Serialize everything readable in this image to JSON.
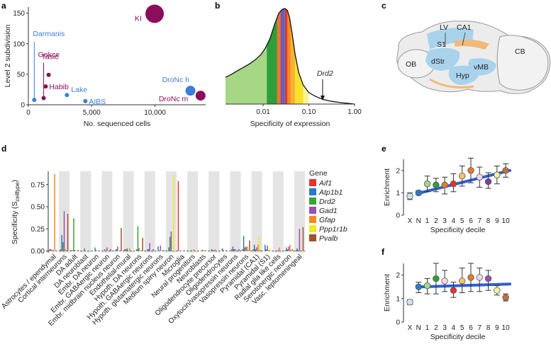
{
  "panels": {
    "a": {
      "label": "a"
    },
    "b": {
      "label": "b"
    },
    "c": {
      "label": "c"
    },
    "d": {
      "label": "d"
    },
    "e": {
      "label": "e"
    },
    "f": {
      "label": "f"
    }
  },
  "brain": {
    "regions": [
      "LV",
      "CA1",
      "S1",
      "OB",
      "dStr",
      "Hyp",
      "vMB",
      "CB"
    ]
  },
  "colors": {
    "blue": "#3b7fd6",
    "purple": "#8b0e5a",
    "Aif1": "#e8322a",
    "Atp1b1": "#2b79c9",
    "Drd2": "#3aa335",
    "Gad1": "#9b4fb3",
    "Gfap": "#f5881f",
    "Ppp1r1b": "#f2e826",
    "Pvalb": "#a0522d",
    "trend": "#2f5fd1"
  },
  "chart_data": [
    {
      "panel": "a",
      "type": "scatter",
      "xlabel": "No. sequenced cells",
      "ylabel": "Level 2 subdivision",
      "xlim": [
        0,
        14000
      ],
      "ylim": [
        0,
        160
      ],
      "xticks": [
        "0",
        "5,000",
        "10,000"
      ],
      "yticks": [
        "0",
        "50",
        "100",
        "150"
      ],
      "points": [
        {
          "name": "KI",
          "x": 9970,
          "y": 149,
          "size": 13,
          "group": "purple"
        },
        {
          "name": "Darmanis",
          "x": 466,
          "y": 8,
          "size": 3,
          "group": "blue"
        },
        {
          "name": "Gokce",
          "x": 1208,
          "y": 11,
          "size": 3,
          "group": "purple"
        },
        {
          "name": "Tasic",
          "x": 1600,
          "y": 49,
          "size": 3,
          "group": "purple"
        },
        {
          "name": "Habib",
          "x": 1367,
          "y": 30,
          "size": 3,
          "group": "purple"
        },
        {
          "name": "Lake",
          "x": 3042,
          "y": 16,
          "size": 3,
          "group": "blue"
        },
        {
          "name": "AIBS",
          "x": 4500,
          "y": 6,
          "size": 3,
          "group": "blue"
        },
        {
          "name": "DroNc h",
          "x": 12800,
          "y": 23,
          "size": 7,
          "group": "blue"
        },
        {
          "name": "DroNc m",
          "x": 13600,
          "y": 15,
          "size": 7,
          "group": "purple"
        }
      ]
    },
    {
      "panel": "b",
      "type": "area",
      "xlabel": "Specificity of expression",
      "xticks": [
        "0.01",
        "0.10",
        "1.00"
      ],
      "scale": "log",
      "xlim": [
        0.0015,
        1.0
      ],
      "annotation": "Drd2",
      "annotation_x": 0.2,
      "density_x": [
        0.0015,
        0.002,
        0.003,
        0.005,
        0.007,
        0.009,
        0.011,
        0.014,
        0.018,
        0.022,
        0.026,
        0.03,
        0.034,
        0.038,
        0.043,
        0.05,
        0.06,
        0.075,
        0.1,
        0.14,
        0.2,
        0.3,
        0.5,
        0.8,
        1.0
      ],
      "density_y": [
        0.28,
        0.31,
        0.36,
        0.42,
        0.47,
        0.52,
        0.58,
        0.68,
        0.84,
        0.95,
        0.99,
        1.0,
        0.98,
        0.9,
        0.74,
        0.52,
        0.33,
        0.2,
        0.12,
        0.08,
        0.05,
        0.03,
        0.015,
        0.005,
        0.0
      ],
      "bands": [
        {
          "from": 0.0015,
          "to": 0.012,
          "color": "#a6d785"
        },
        {
          "from": 0.012,
          "to": 0.02,
          "color": "#2e9e3a"
        },
        {
          "from": 0.02,
          "to": 0.024,
          "color": "#e07a2e"
        },
        {
          "from": 0.024,
          "to": 0.027,
          "color": "#9b3fb0"
        },
        {
          "from": 0.027,
          "to": 0.03,
          "color": "#2b79c9"
        },
        {
          "from": 0.03,
          "to": 0.034,
          "color": "#e8322a"
        },
        {
          "from": 0.034,
          "to": 0.04,
          "color": "#f5881f"
        },
        {
          "from": 0.04,
          "to": 0.05,
          "color": "#f7b234"
        },
        {
          "from": 0.05,
          "to": 0.075,
          "color": "#f6e22a"
        },
        {
          "from": 0.075,
          "to": 0.1,
          "color": "#f8f29a"
        }
      ]
    },
    {
      "panel": "d",
      "type": "bar",
      "ylabel": "Specificity (S",
      "ylabel_sub": "celltype",
      "ylabel_end": ")",
      "ylim": [
        -0.02,
        0.9
      ],
      "yticks": [
        "0.00",
        "0.25",
        "0.50",
        "0.75"
      ],
      "legend_title": "Gene",
      "legend_position": "right",
      "series_names": [
        "Aif1",
        "Atp1b1",
        "Drd2",
        "Gad1",
        "Gfap",
        "Ppp1r1b",
        "Pvalb"
      ],
      "categories": [
        "Astrocytes / ependymal",
        "Cortical interneurons",
        "DA adult",
        "DA neuroblast",
        "Embr. DA neuron",
        "Embr. GABAergic neuron",
        "Embr. midbrain nucleus neuron",
        "Endothelial-mural",
        "Hypoth. DA neurons",
        "Hypoth. GABAergic neurons",
        "Hypoth. glutamatergic neurons",
        "Medium spiny neuron",
        "Microglia",
        "Neural progenitors",
        "Neuroblasts",
        "Oligodendrocyte precursor",
        "Oligodendrocytes",
        "Oxytocin/vasopressin neurons",
        "Vasopressin neurons",
        "Pyramidal (CA1)",
        "Pyramidal (S1)",
        "Radial glia like cells",
        "Serotonergic neuron",
        "Vasc. leptomeningeal"
      ],
      "values": [
        [
          0.02,
          0.02,
          0.0,
          0.01,
          0.87,
          0.0,
          0.0
        ],
        [
          0.02,
          0.18,
          0.1,
          0.45,
          0.02,
          0.0,
          0.42
        ],
        [
          0.01,
          0.01,
          0.37,
          0.01,
          0.0,
          0.01,
          0.01
        ],
        [
          0.0,
          0.0,
          0.03,
          0.0,
          0.0,
          0.0,
          0.0
        ],
        [
          0.0,
          0.0,
          0.04,
          0.01,
          0.0,
          0.0,
          0.0
        ],
        [
          0.0,
          0.02,
          0.0,
          0.04,
          0.0,
          0.0,
          0.02
        ],
        [
          0.0,
          0.01,
          0.02,
          0.05,
          0.0,
          0.0,
          0.26
        ],
        [
          0.02,
          0.02,
          0.03,
          0.0,
          0.03,
          0.0,
          0.0
        ],
        [
          0.0,
          0.02,
          0.28,
          0.03,
          0.0,
          0.01,
          0.15
        ],
        [
          0.0,
          0.02,
          0.02,
          0.09,
          0.0,
          0.0,
          0.02
        ],
        [
          0.0,
          0.05,
          0.0,
          0.06,
          0.0,
          0.0,
          0.01
        ],
        [
          0.0,
          0.04,
          0.16,
          0.22,
          0.0,
          0.86,
          0.0
        ],
        [
          0.79,
          0.0,
          0.0,
          0.0,
          0.0,
          0.0,
          0.0
        ],
        [
          0.0,
          0.0,
          0.01,
          0.0,
          0.02,
          0.0,
          0.0
        ],
        [
          0.0,
          0.0,
          0.01,
          0.01,
          0.0,
          0.0,
          0.0
        ],
        [
          0.0,
          0.02,
          0.01,
          0.01,
          0.02,
          0.0,
          0.0
        ],
        [
          0.0,
          0.03,
          0.01,
          0.0,
          0.01,
          0.0,
          0.0
        ],
        [
          0.02,
          0.05,
          0.02,
          0.02,
          0.0,
          0.0,
          0.02
        ],
        [
          0.02,
          0.17,
          0.04,
          0.05,
          0.05,
          0.02,
          0.12
        ],
        [
          0.02,
          0.07,
          0.02,
          0.04,
          0.07,
          0.16,
          0.01
        ],
        [
          0.0,
          0.07,
          0.02,
          0.06,
          0.01,
          0.03,
          0.0
        ],
        [
          0.0,
          0.0,
          0.0,
          0.01,
          0.04,
          0.0,
          0.0
        ],
        [
          0.01,
          0.04,
          0.02,
          0.05,
          0.07,
          0.0,
          0.02
        ],
        [
          0.01,
          0.03,
          0.01,
          0.25,
          0.0,
          0.01,
          0.27
        ]
      ]
    },
    {
      "panel": "e",
      "type": "scatter",
      "xlabel": "Specificity decile",
      "ylabel": "Enrichment",
      "ylim": [
        0,
        2.5
      ],
      "yticks": [
        "0",
        "1",
        "2"
      ],
      "categories": [
        "X",
        "N",
        "1",
        "2",
        "3",
        "4",
        "5",
        "6",
        "7",
        "8",
        "9",
        "10"
      ],
      "values": [
        0.85,
        1.0,
        1.4,
        1.35,
        1.35,
        1.4,
        1.75,
        2.0,
        1.7,
        1.5,
        1.8,
        2.0
      ],
      "err_low": [
        0.7,
        0.9,
        1.05,
        1.05,
        0.95,
        1.05,
        1.3,
        1.45,
        1.25,
        1.2,
        1.4,
        1.7
      ],
      "err_high": [
        1.0,
        1.1,
        1.75,
        1.65,
        1.7,
        1.85,
        2.2,
        2.55,
        2.15,
        1.9,
        2.2,
        2.3
      ],
      "colors": [
        "#cfe4f6",
        "#2b79c9",
        "#a6d785",
        "#2e9e3a",
        "#e07a2e",
        "#e8322a",
        "#f5c36a",
        "#e07a2e",
        "#f2d7e8",
        "#7b3fa0",
        "#f6ef9a",
        "#c0723a"
      ],
      "trend": [
        1.0,
        2.0
      ]
    },
    {
      "panel": "f",
      "type": "scatter",
      "xlabel": "Specificity decile",
      "ylabel": "Enrichment",
      "ylim": [
        0,
        2.5
      ],
      "yticks": [
        "0",
        "1",
        "2"
      ],
      "categories": [
        "X",
        "N",
        "1",
        "2",
        "3",
        "4",
        "5",
        "6",
        "7",
        "8",
        "9",
        "10"
      ],
      "values": [
        0.85,
        1.5,
        1.55,
        1.85,
        1.75,
        1.35,
        1.75,
        1.9,
        1.9,
        1.85,
        1.35,
        1.05
      ],
      "err_low": [
        0.75,
        1.25,
        1.2,
        1.2,
        1.3,
        1.05,
        1.25,
        1.3,
        1.3,
        1.35,
        1.15,
        0.9
      ],
      "err_high": [
        0.95,
        1.7,
        1.85,
        2.5,
        2.2,
        1.7,
        2.3,
        2.5,
        2.3,
        2.2,
        1.55,
        1.2
      ],
      "colors": [
        "#cfe4f6",
        "#2b79c9",
        "#a6d785",
        "#2e9e3a",
        "#f2d7e8",
        "#e8322a",
        "#f5c36a",
        "#e07a2e",
        "#f2d7e8",
        "#9b4fb3",
        "#f6ef9a",
        "#c0723a"
      ],
      "trend": [
        1.5,
        1.62
      ]
    }
  ]
}
